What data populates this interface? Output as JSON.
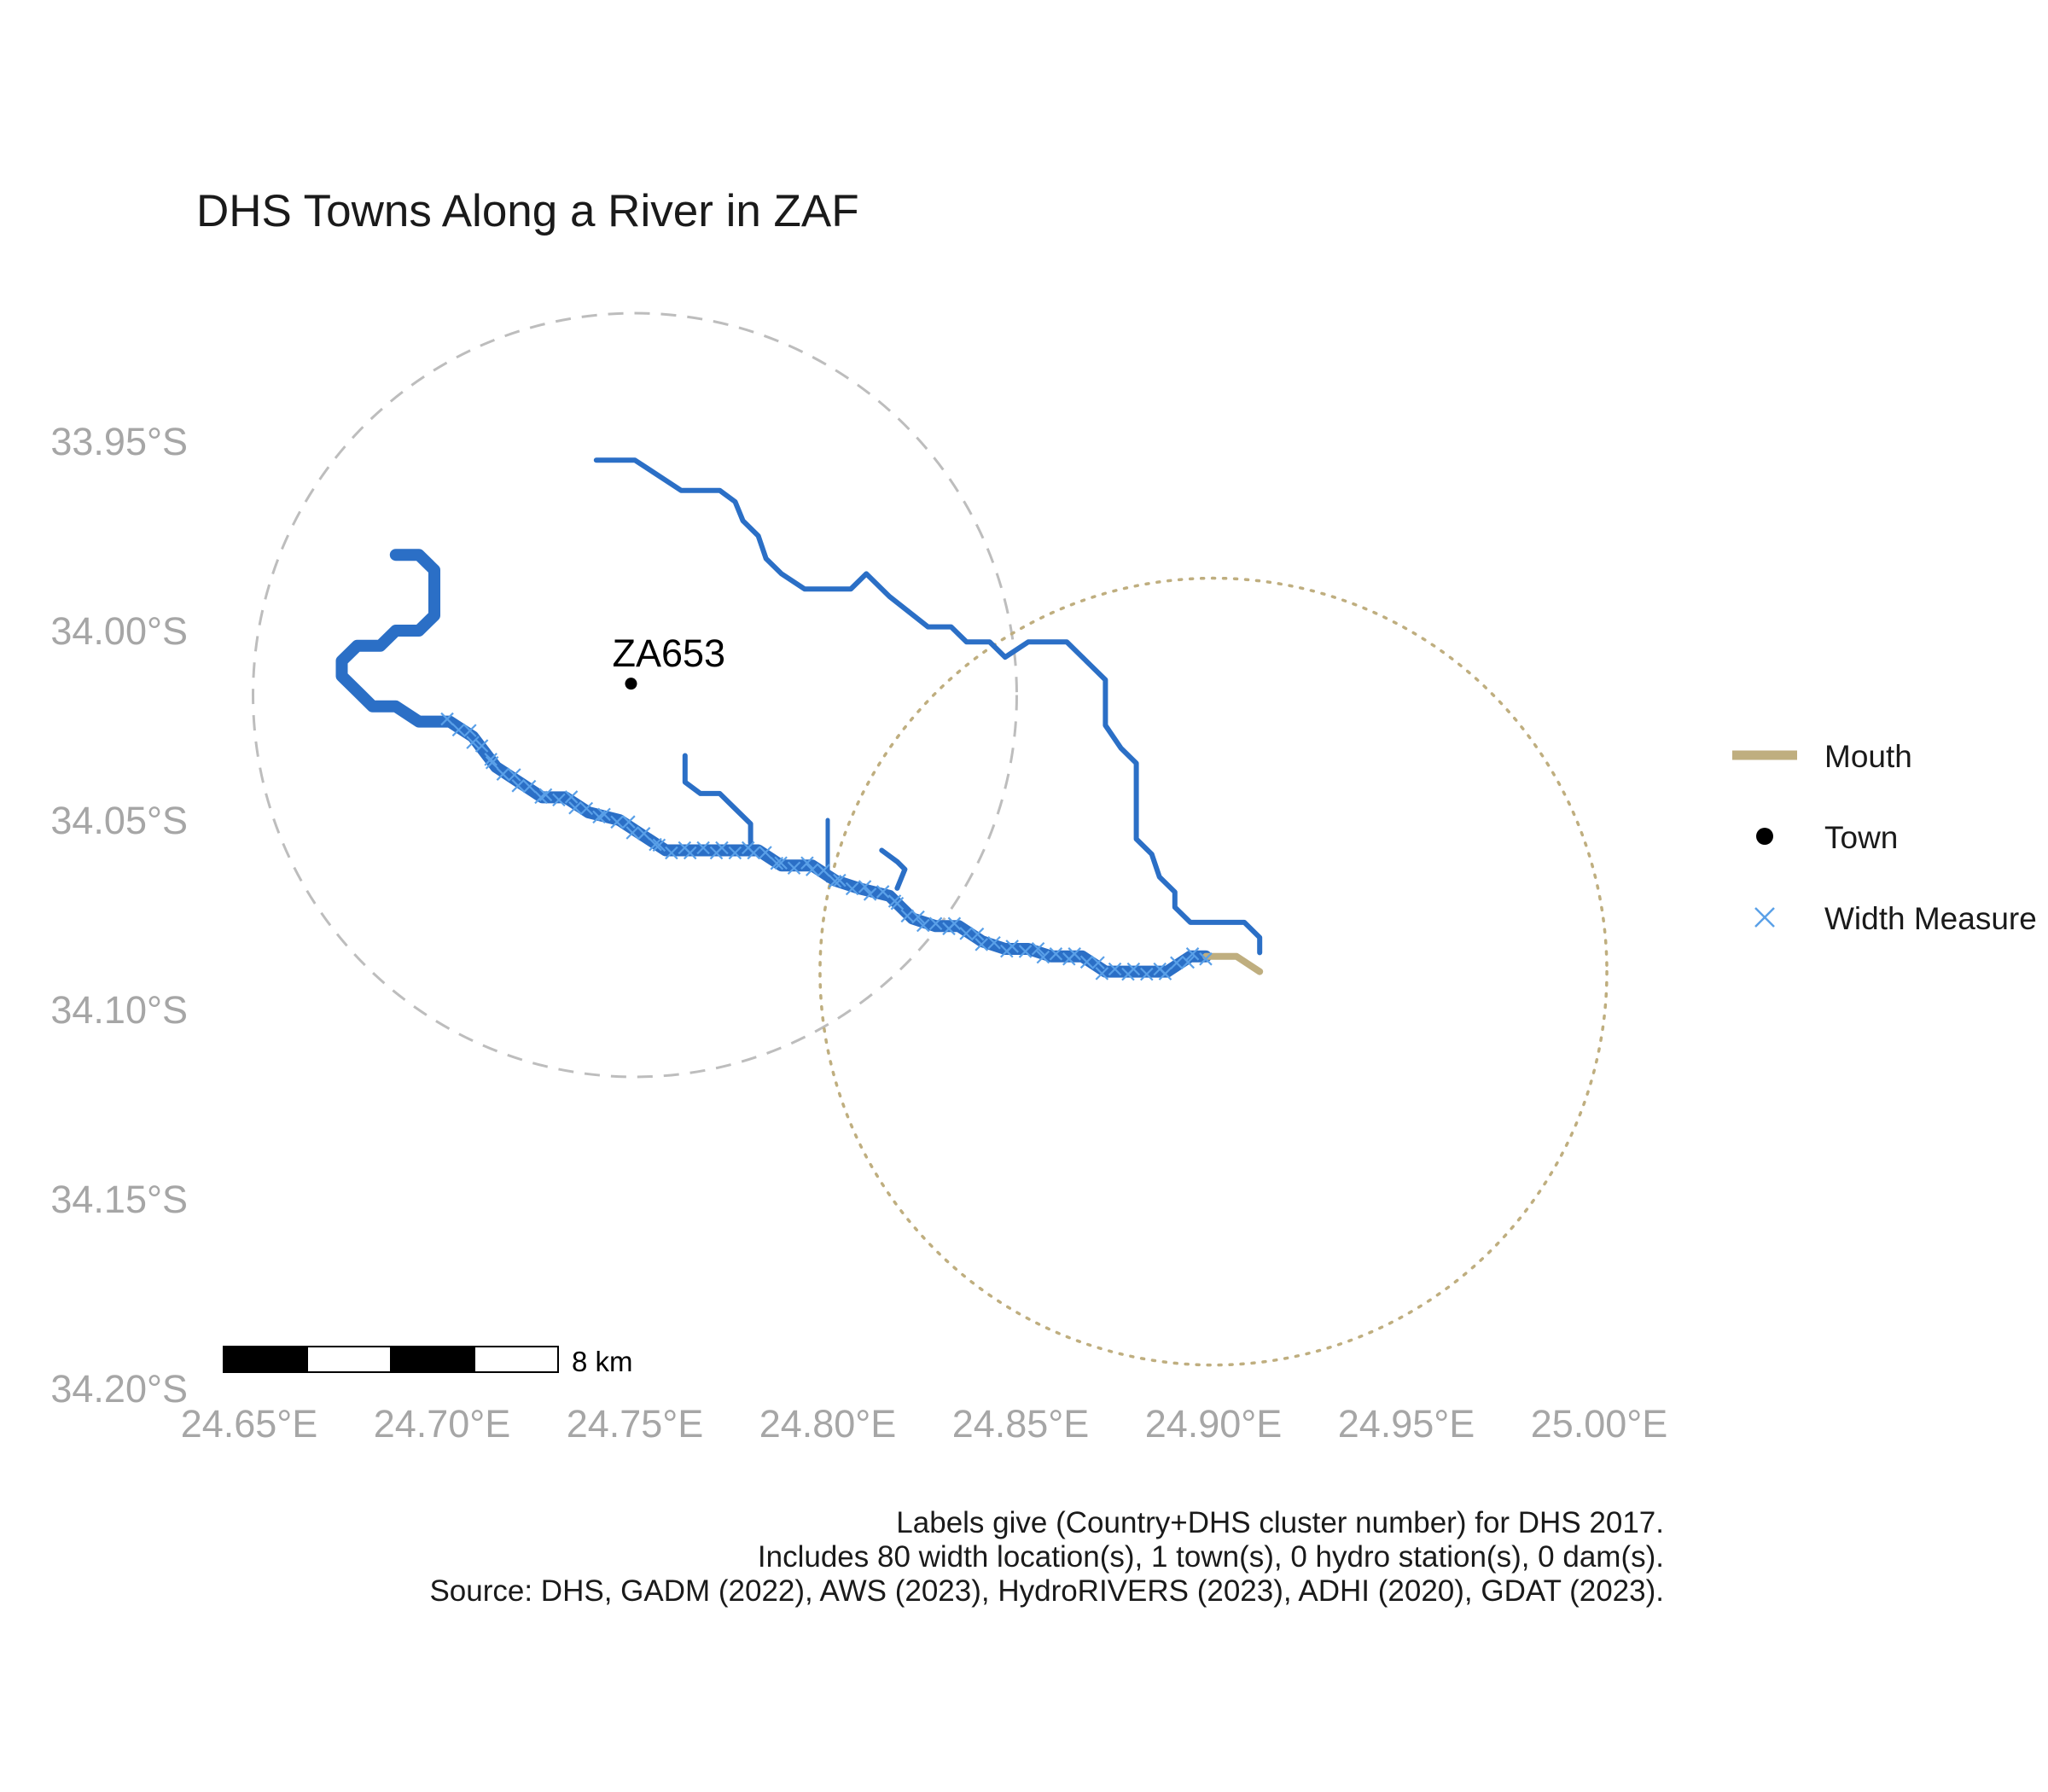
{
  "title": "DHS Towns Along a River in ZAF",
  "colors": {
    "river": "#2b6fc6",
    "width_marker": "#5aa0e8",
    "mouth": "#bfae7f",
    "town": "#000000",
    "town_buffer": "#bdbdbd",
    "mouth_buffer": "#bfae7f",
    "axis_text": "#a6a6a6"
  },
  "axes": {
    "x_ticks": [
      "24.65°E",
      "24.70°E",
      "24.75°E",
      "24.80°E",
      "24.85°E",
      "24.90°E",
      "24.95°E",
      "25.00°E"
    ],
    "y_ticks": [
      "33.95°S",
      "34.00°S",
      "34.05°S",
      "34.10°S",
      "34.15°S",
      "34.20°S"
    ]
  },
  "town": {
    "label": "ZA653",
    "lon": 24.749,
    "lat": -34.014
  },
  "town_buffer": {
    "center_lon": 24.75,
    "center_lat": -34.017,
    "radius_deg": 0.099
  },
  "mouth_buffer": {
    "center_lon": 24.9,
    "center_lat": -34.09,
    "radius_deg": 0.102
  },
  "rivers": {
    "main_stem": [
      [
        24.688,
        -33.98
      ],
      [
        24.694,
        -33.98
      ],
      [
        24.698,
        -33.984
      ],
      [
        24.698,
        -33.996
      ],
      [
        24.694,
        -34.0
      ],
      [
        24.688,
        -34.0
      ],
      [
        24.684,
        -34.004
      ],
      [
        24.678,
        -34.004
      ],
      [
        24.674,
        -34.008
      ],
      [
        24.674,
        -34.012
      ],
      [
        24.678,
        -34.016
      ],
      [
        24.682,
        -34.02
      ],
      [
        24.688,
        -34.02
      ],
      [
        24.694,
        -34.024
      ],
      [
        24.702,
        -34.024
      ],
      [
        24.708,
        -34.028
      ],
      [
        24.714,
        -34.036
      ],
      [
        24.72,
        -34.04
      ],
      [
        24.726,
        -34.044
      ],
      [
        24.732,
        -34.044
      ],
      [
        24.738,
        -34.048
      ],
      [
        24.746,
        -34.05
      ],
      [
        24.752,
        -34.054
      ],
      [
        24.758,
        -34.058
      ],
      [
        24.766,
        -34.058
      ],
      [
        24.774,
        -34.058
      ],
      [
        24.782,
        -34.058
      ],
      [
        24.788,
        -34.062
      ],
      [
        24.796,
        -34.062
      ],
      [
        24.802,
        -34.066
      ],
      [
        24.808,
        -34.068
      ],
      [
        24.816,
        -34.07
      ],
      [
        24.822,
        -34.076
      ],
      [
        24.828,
        -34.078
      ],
      [
        24.834,
        -34.078
      ],
      [
        24.84,
        -34.082
      ],
      [
        24.846,
        -34.084
      ],
      [
        24.852,
        -34.084
      ],
      [
        24.858,
        -34.086
      ],
      [
        24.866,
        -34.086
      ],
      [
        24.872,
        -34.09
      ],
      [
        24.88,
        -34.09
      ],
      [
        24.888,
        -34.09
      ],
      [
        24.894,
        -34.086
      ],
      [
        24.898,
        -34.086
      ]
    ],
    "north_tributary": [
      [
        24.74,
        -33.955
      ],
      [
        24.75,
        -33.955
      ],
      [
        24.762,
        -33.963
      ],
      [
        24.772,
        -33.963
      ],
      [
        24.776,
        -33.966
      ],
      [
        24.778,
        -33.971
      ],
      [
        24.782,
        -33.975
      ],
      [
        24.784,
        -33.981
      ],
      [
        24.788,
        -33.985
      ],
      [
        24.794,
        -33.989
      ],
      [
        24.806,
        -33.989
      ],
      [
        24.81,
        -33.985
      ],
      [
        24.816,
        -33.991
      ],
      [
        24.826,
        -33.999
      ],
      [
        24.832,
        -33.999
      ],
      [
        24.836,
        -34.003
      ],
      [
        24.842,
        -34.003
      ],
      [
        24.846,
        -34.007
      ],
      [
        24.852,
        -34.003
      ],
      [
        24.862,
        -34.003
      ],
      [
        24.868,
        -34.009
      ],
      [
        24.872,
        -34.013
      ],
      [
        24.872,
        -34.025
      ],
      [
        24.876,
        -34.031
      ],
      [
        24.88,
        -34.035
      ],
      [
        24.88,
        -34.041
      ],
      [
        24.88,
        -34.055
      ],
      [
        24.884,
        -34.059
      ],
      [
        24.886,
        -34.065
      ],
      [
        24.89,
        -34.069
      ],
      [
        24.89,
        -34.073
      ],
      [
        24.894,
        -34.077
      ],
      [
        24.908,
        -34.077
      ],
      [
        24.912,
        -34.081
      ],
      [
        24.912,
        -34.085
      ]
    ],
    "small_tributary_a": [
      [
        24.763,
        -34.033
      ],
      [
        24.763,
        -34.04
      ],
      [
        24.767,
        -34.043
      ],
      [
        24.772,
        -34.043
      ],
      [
        24.776,
        -34.047
      ],
      [
        24.78,
        -34.051
      ],
      [
        24.78,
        -34.056
      ]
    ],
    "small_tributary_b": [
      [
        24.8,
        -34.05
      ],
      [
        24.8,
        -34.066
      ]
    ],
    "small_tributary_c": [
      [
        24.814,
        -34.058
      ],
      [
        24.818,
        -34.061
      ],
      [
        24.82,
        -34.063
      ],
      [
        24.818,
        -34.068
      ]
    ],
    "mouth_segment": [
      [
        24.898,
        -34.086
      ],
      [
        24.906,
        -34.086
      ],
      [
        24.912,
        -34.09
      ]
    ]
  },
  "width_measure_count": 80,
  "scale_bar": {
    "label": "8 km"
  },
  "legend": {
    "items": [
      {
        "key": "mouth",
        "label": "Mouth"
      },
      {
        "key": "town",
        "label": "Town"
      },
      {
        "key": "width",
        "label": "Width Measure"
      }
    ]
  },
  "caption": {
    "line1": "Labels give (Country+DHS cluster number) for DHS 2017.",
    "line2": "Includes 80 width location(s), 1 town(s), 0 hydro station(s), 0 dam(s).",
    "line3": "Source: DHS, GADM (2022), AWS (2023), HydroRIVERS (2023), ADHI (2020), GDAT (2023)."
  }
}
